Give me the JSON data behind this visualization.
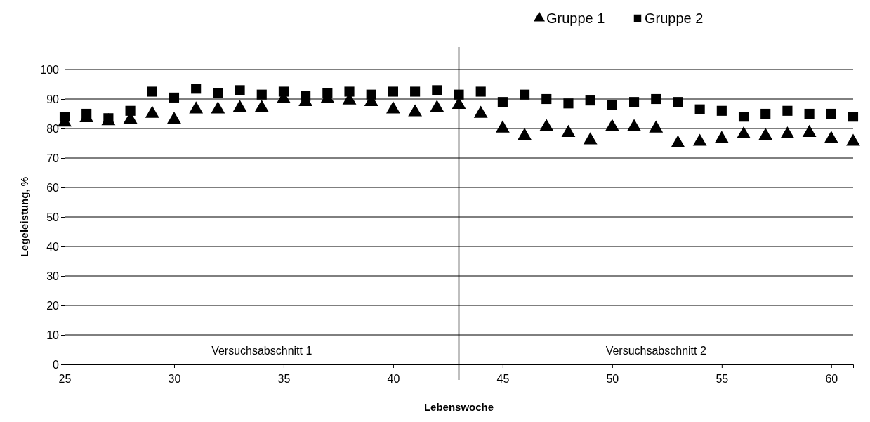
{
  "chart_data": {
    "type": "scatter",
    "xlabel": "Lebenswoche",
    "ylabel": "Legeleistung, %",
    "x": [
      25,
      26,
      27,
      28,
      29,
      30,
      31,
      32,
      33,
      34,
      35,
      36,
      37,
      38,
      39,
      40,
      41,
      42,
      43,
      44,
      45,
      46,
      47,
      48,
      49,
      50,
      51,
      52,
      53,
      54,
      55,
      56,
      57,
      58,
      59,
      60,
      61
    ],
    "series": [
      {
        "name": "Gruppe 1",
        "color": "#000000",
        "marker": "triangle",
        "values": [
          82,
          83.5,
          82.5,
          83,
          85,
          83,
          86.5,
          86.5,
          87,
          87,
          90,
          89,
          90,
          89.5,
          89,
          86.5,
          85.5,
          87,
          88,
          85,
          80,
          77.5,
          80.5,
          78.5,
          76,
          80.5,
          80.5,
          80,
          75,
          75.5,
          76.5,
          78,
          77.5,
          78,
          78.5,
          76.5,
          75.5
        ]
      },
      {
        "name": "Gruppe 2",
        "color": "#000000",
        "marker": "square",
        "values": [
          84,
          85,
          83.5,
          86,
          92.5,
          90.5,
          93.5,
          92,
          93,
          91.5,
          92.5,
          91,
          92,
          92.5,
          91.5,
          92.5,
          92.5,
          93,
          91.5,
          92.5,
          89,
          91.5,
          90,
          88.5,
          89.5,
          88,
          89,
          90,
          89,
          86.5,
          86,
          84,
          85,
          86,
          85,
          85,
          84
        ]
      }
    ],
    "xlim": [
      25,
      61
    ],
    "xticks": [
      25,
      30,
      35,
      40,
      45,
      50,
      55,
      60
    ],
    "ylim": [
      0,
      100
    ],
    "yticks": [
      0,
      10,
      20,
      30,
      40,
      50,
      60,
      70,
      80,
      90,
      100
    ],
    "grid": "y",
    "legend": "top right",
    "ref_lines": [
      {
        "axis": "x",
        "value": 43,
        "color": "#000000"
      }
    ],
    "annotations": [
      "Versuchsabschnitt 1",
      "Versuchsabschnitt 2"
    ]
  }
}
